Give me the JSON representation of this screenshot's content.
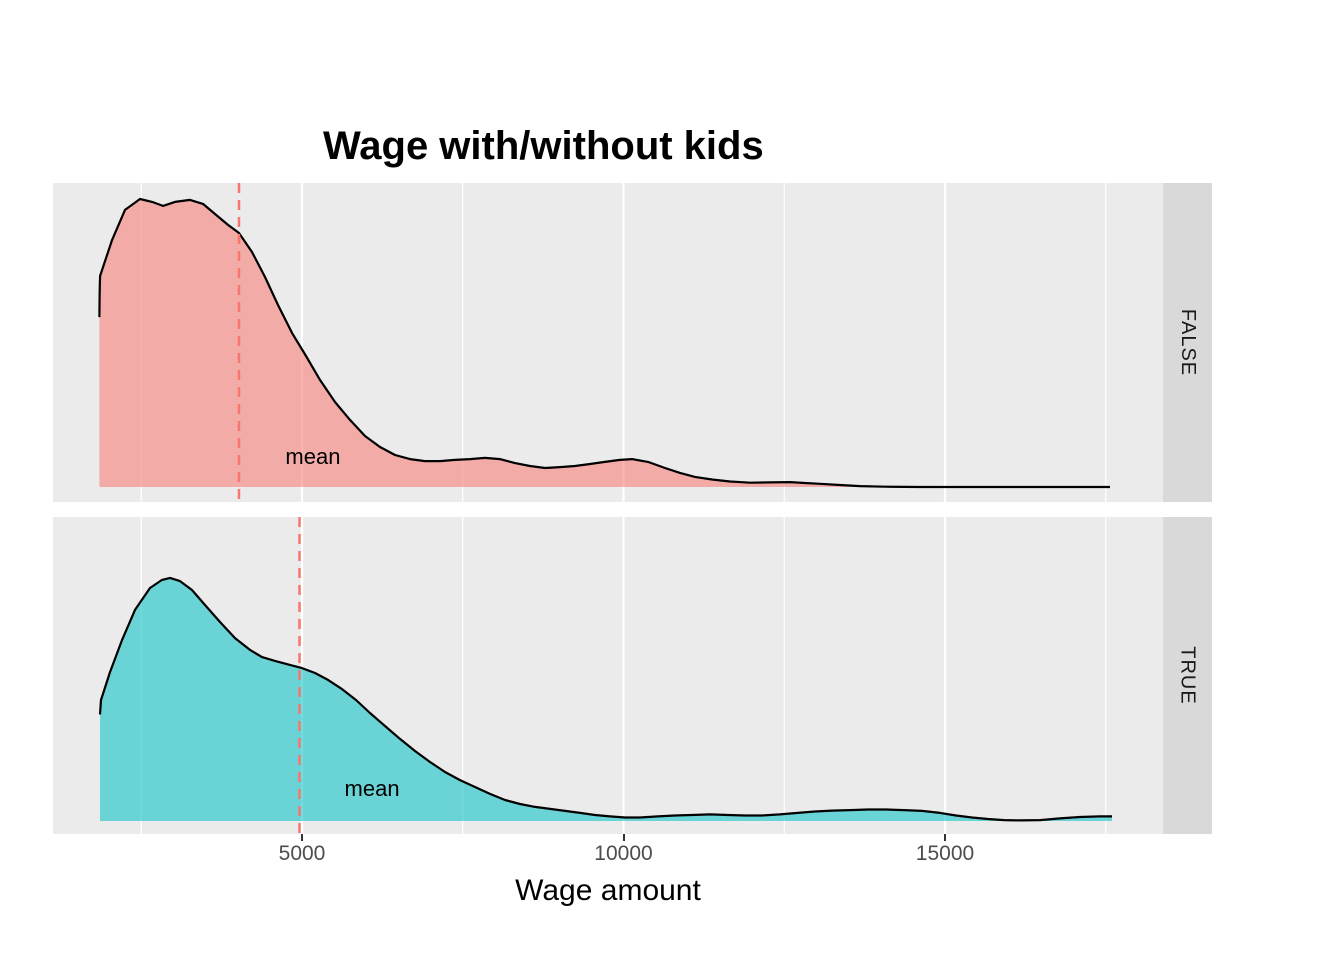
{
  "chart_data": {
    "type": "area",
    "title": "Wage with/without kids",
    "xlabel": "Wage amount",
    "x_ticks": [
      5000,
      10000,
      15000
    ],
    "x_minor_ticks": [
      2500,
      7500,
      12500,
      17500
    ],
    "x_domain": [
      1127,
      18390
    ],
    "y_units": "relative density (FALSE facet peak = 1)",
    "grid": "vertical white gridlines on gray panel, no y axis",
    "legend_position": "none",
    "facet_variable_values": [
      "FALSE",
      "TRUE"
    ],
    "colors": {
      "panel_bg": "#EBEBEB",
      "strip_bg": "#D9D9D9",
      "strip_text": "#1A1A1A",
      "gridline": "#FFFFFF",
      "curve_stroke": "#000000",
      "mean_line": "#F8766D",
      "axis_tick": "#333333",
      "axis_text": "#4D4D4D",
      "fill_false": "#F8766D",
      "fill_true": "#00BFC4",
      "fill_opacity": 0.55
    },
    "series": [
      {
        "facet": "FALSE",
        "fill": "#F8766D",
        "mean_wage": 4020,
        "mean_label": "mean",
        "mean_label_at": {
          "wage": 5170,
          "density": 0.1
        },
        "points": [
          [
            1849,
            0.59
          ],
          [
            1853,
            0.66
          ],
          [
            1856,
            0.7
          ],
          [
            1860,
            0.733
          ],
          [
            2046,
            0.858
          ],
          [
            2248,
            0.962
          ],
          [
            2481,
            1.0
          ],
          [
            2668,
            0.99
          ],
          [
            2838,
            0.976
          ],
          [
            3025,
            0.99
          ],
          [
            3258,
            0.997
          ],
          [
            3460,
            0.983
          ],
          [
            3647,
            0.948
          ],
          [
            3849,
            0.91
          ],
          [
            4020,
            0.882
          ],
          [
            4222,
            0.816
          ],
          [
            4425,
            0.729
          ],
          [
            4627,
            0.632
          ],
          [
            4845,
            0.535
          ],
          [
            5062,
            0.455
          ],
          [
            5280,
            0.372
          ],
          [
            5513,
            0.295
          ],
          [
            5746,
            0.233
          ],
          [
            5980,
            0.177
          ],
          [
            6213,
            0.139
          ],
          [
            6446,
            0.111
          ],
          [
            6680,
            0.097
          ],
          [
            6913,
            0.09
          ],
          [
            7146,
            0.09
          ],
          [
            7380,
            0.094
          ],
          [
            7613,
            0.097
          ],
          [
            7846,
            0.101
          ],
          [
            8079,
            0.097
          ],
          [
            8313,
            0.083
          ],
          [
            8546,
            0.073
          ],
          [
            8779,
            0.066
          ],
          [
            9013,
            0.069
          ],
          [
            9246,
            0.073
          ],
          [
            9479,
            0.08
          ],
          [
            9712,
            0.087
          ],
          [
            9946,
            0.094
          ],
          [
            10132,
            0.097
          ],
          [
            10381,
            0.087
          ],
          [
            10646,
            0.066
          ],
          [
            10879,
            0.049
          ],
          [
            11112,
            0.035
          ],
          [
            11376,
            0.026
          ],
          [
            11656,
            0.019
          ],
          [
            11967,
            0.015
          ],
          [
            12278,
            0.016
          ],
          [
            12589,
            0.017
          ],
          [
            12823,
            0.014
          ],
          [
            13056,
            0.011
          ],
          [
            13367,
            0.007
          ],
          [
            13678,
            0.003
          ],
          [
            14067,
            0.001
          ],
          [
            14611,
            0.0
          ],
          [
            15855,
            0.0
          ],
          [
            16700,
            0.0
          ],
          [
            17566,
            0.0
          ]
        ]
      },
      {
        "facet": "TRUE",
        "fill": "#00BFC4",
        "mean_wage": 4961,
        "mean_label": "mean",
        "mean_label_at": {
          "wage": 6090,
          "density": 0.107
        },
        "points": [
          [
            1858,
            0.37
          ],
          [
            1874,
            0.42
          ],
          [
            2014,
            0.517
          ],
          [
            2200,
            0.628
          ],
          [
            2403,
            0.733
          ],
          [
            2636,
            0.809
          ],
          [
            2823,
            0.837
          ],
          [
            2947,
            0.844
          ],
          [
            3103,
            0.833
          ],
          [
            3289,
            0.802
          ],
          [
            3491,
            0.75
          ],
          [
            3725,
            0.691
          ],
          [
            3958,
            0.635
          ],
          [
            4191,
            0.594
          ],
          [
            4378,
            0.569
          ],
          [
            4580,
            0.556
          ],
          [
            4813,
            0.542
          ],
          [
            5000,
            0.531
          ],
          [
            5202,
            0.514
          ],
          [
            5404,
            0.49
          ],
          [
            5622,
            0.458
          ],
          [
            5840,
            0.42
          ],
          [
            6058,
            0.375
          ],
          [
            6291,
            0.33
          ],
          [
            6524,
            0.285
          ],
          [
            6757,
            0.243
          ],
          [
            6991,
            0.205
          ],
          [
            7224,
            0.17
          ],
          [
            7457,
            0.142
          ],
          [
            7690,
            0.118
          ],
          [
            7924,
            0.094
          ],
          [
            8157,
            0.073
          ],
          [
            8390,
            0.059
          ],
          [
            8623,
            0.049
          ],
          [
            8857,
            0.042
          ],
          [
            9090,
            0.035
          ],
          [
            9323,
            0.028
          ],
          [
            9556,
            0.021
          ],
          [
            9790,
            0.016
          ],
          [
            10023,
            0.012
          ],
          [
            10256,
            0.012
          ],
          [
            10536,
            0.016
          ],
          [
            10800,
            0.019
          ],
          [
            11065,
            0.021
          ],
          [
            11345,
            0.023
          ],
          [
            11625,
            0.021
          ],
          [
            11889,
            0.019
          ],
          [
            12153,
            0.019
          ],
          [
            12433,
            0.023
          ],
          [
            12713,
            0.028
          ],
          [
            12978,
            0.033
          ],
          [
            13242,
            0.036
          ],
          [
            13522,
            0.038
          ],
          [
            13802,
            0.04
          ],
          [
            14082,
            0.04
          ],
          [
            14362,
            0.038
          ],
          [
            14642,
            0.035
          ],
          [
            14922,
            0.028
          ],
          [
            15171,
            0.019
          ],
          [
            15420,
            0.012
          ],
          [
            15669,
            0.007
          ],
          [
            15918,
            0.003
          ],
          [
            16167,
            0.002
          ],
          [
            16478,
            0.003
          ],
          [
            16789,
            0.009
          ],
          [
            17100,
            0.014
          ],
          [
            17411,
            0.016
          ],
          [
            17597,
            0.016
          ]
        ]
      }
    ]
  }
}
